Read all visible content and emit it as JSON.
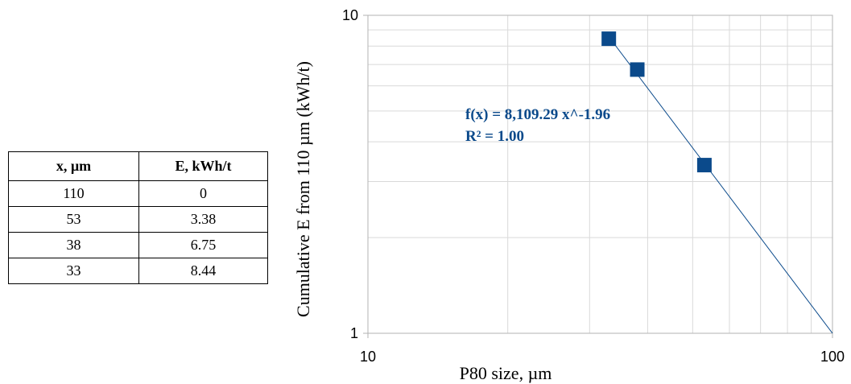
{
  "table": {
    "headers": [
      "x, µm",
      "E, kWh/t"
    ],
    "rows": [
      [
        "110",
        "0"
      ],
      [
        "53",
        "3.38"
      ],
      [
        "38",
        "6.75"
      ],
      [
        "33",
        "8.44"
      ]
    ]
  },
  "chart_data": {
    "type": "scatter",
    "title": "",
    "xlabel": "P80 size, µm",
    "ylabel": "Cumulative E from 110 µm (kWh/t)",
    "x_scale": "log",
    "y_scale": "log",
    "xlim": [
      10,
      100
    ],
    "ylim": [
      1,
      10
    ],
    "x_ticks": [
      10,
      100
    ],
    "y_ticks": [
      1,
      10
    ],
    "x_tick_labels": [
      "10",
      "100"
    ],
    "y_tick_labels": [
      "1",
      "10"
    ],
    "grid": true,
    "series": [
      {
        "x": [
          33,
          38,
          53
        ],
        "y": [
          8.44,
          6.75,
          3.38
        ],
        "marker": "square",
        "color": "#0b4a8b"
      }
    ],
    "trendline": {
      "type": "power",
      "coefficient": 8109.29,
      "exponent": -1.96,
      "color": "#0b4a8b"
    },
    "annotations": [
      "f(x) = 8,109.29 x^-1.96",
      "R² = 1.00"
    ]
  }
}
